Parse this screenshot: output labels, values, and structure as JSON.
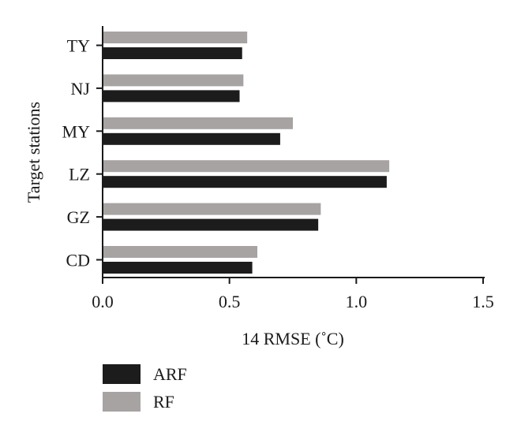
{
  "chart_data": {
    "type": "bar",
    "orientation": "horizontal",
    "title": "",
    "xlabel": "14 RMSE (˚C)",
    "ylabel": "Target stations",
    "categories": [
      "TY",
      "NJ",
      "MY",
      "LZ",
      "GZ",
      "CD"
    ],
    "series": [
      {
        "name": "RF",
        "color": "#a8a3a3",
        "values": [
          0.57,
          0.555,
          0.75,
          1.13,
          0.86,
          0.61
        ]
      },
      {
        "name": "ARF",
        "color": "#1c1c1c",
        "values": [
          0.55,
          0.54,
          0.7,
          1.12,
          0.85,
          0.59
        ]
      }
    ],
    "xlim": [
      0.0,
      1.5
    ],
    "xticks": [
      "0.0",
      "0.5",
      "1.0",
      "1.5"
    ],
    "grid": false,
    "legend": {
      "position": "bottom-left",
      "entries": [
        {
          "name": "ARF",
          "color": "#1c1c1c"
        },
        {
          "name": "RF",
          "color": "#a8a3a3"
        }
      ]
    }
  }
}
